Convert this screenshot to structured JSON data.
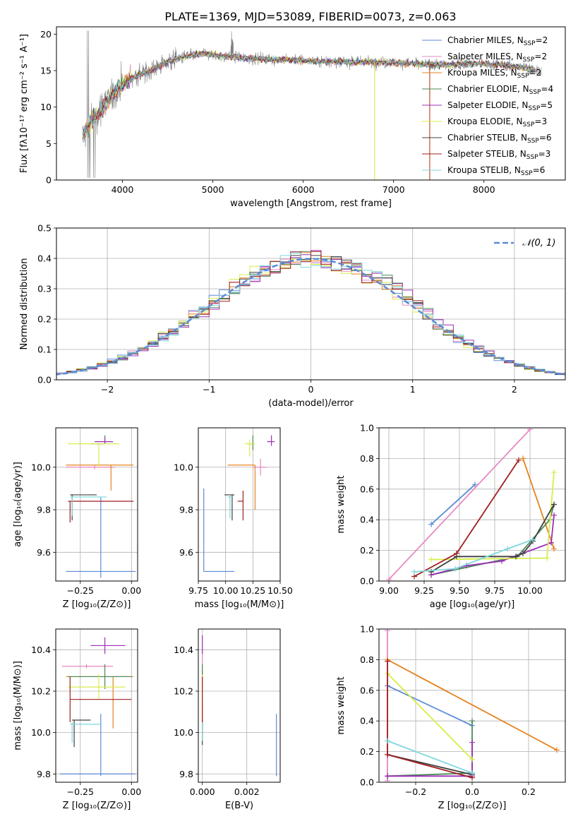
{
  "figure_title": "PLATE=1369, MJD=53089, FIBERID=0073, z=0.063",
  "colors": {
    "chabrier_miles": "#5b8bd8",
    "salpeter_miles": "#e78ac3",
    "kroupa_miles": "#e6821e",
    "chabrier_elodie": "#4a8a55",
    "salpeter_elodie": "#9c30b8",
    "kroupa_elodie": "#d8ec4a",
    "chabrier_stelib": "#404040",
    "salpeter_stelib": "#a01f1f",
    "kroupa_stelib": "#7fd8dc",
    "data": "#808080",
    "gaussian": "#5b8bd8",
    "grid": "#b0b0b0"
  },
  "chart_data": [
    {
      "id": "spectrum",
      "type": "line",
      "xlabel": "wavelength [Angstrom, rest frame]",
      "ylabel": "Flux [fλ10⁻¹⁷ erg cm⁻² s⁻¹ A⁻¹]",
      "xlim": [
        3270,
        8900
      ],
      "ylim": [
        0,
        21
      ],
      "xticks": [
        4000,
        5000,
        6000,
        7000,
        8000
      ],
      "yticks": [
        0,
        5,
        10,
        15,
        20
      ],
      "grid": false,
      "legend_position": "top-right",
      "continuum": [
        [
          3560,
          6
        ],
        [
          3650,
          8
        ],
        [
          3750,
          9.5
        ],
        [
          3850,
          11
        ],
        [
          3950,
          12.5
        ],
        [
          4100,
          14
        ],
        [
          4300,
          15
        ],
        [
          4500,
          16.2
        ],
        [
          4700,
          17
        ],
        [
          4900,
          17.3
        ],
        [
          5100,
          17
        ],
        [
          5300,
          16.8
        ],
        [
          5500,
          16.6
        ],
        [
          5800,
          16.5
        ],
        [
          6100,
          16.3
        ],
        [
          6400,
          16.2
        ],
        [
          6700,
          16.2
        ],
        [
          7000,
          16.1
        ],
        [
          7300,
          15.9
        ],
        [
          7600,
          15.8
        ],
        [
          7900,
          16
        ],
        [
          8200,
          15.8
        ],
        [
          8500,
          15.3
        ],
        [
          8640,
          15
        ]
      ],
      "series": [
        {
          "name": "Chabrier MILES, N",
          "sub": "SSP",
          "suffix": "=2",
          "color_key": "chabrier_miles"
        },
        {
          "name": "Salpeter MILES, N",
          "sub": "SSP",
          "suffix": "=2",
          "color_key": "salpeter_miles"
        },
        {
          "name": "Kroupa MILES, N",
          "sub": "SSP",
          "suffix": "=2",
          "color_key": "kroupa_miles"
        },
        {
          "name": "Chabrier ELODIE, N",
          "sub": "SSP",
          "suffix": "=4",
          "color_key": "chabrier_elodie"
        },
        {
          "name": "Salpeter ELODIE, N",
          "sub": "SSP",
          "suffix": "=5",
          "color_key": "salpeter_elodie"
        },
        {
          "name": "Kroupa ELODIE, N",
          "sub": "SSP",
          "suffix": "=3",
          "color_key": "kroupa_elodie"
        },
        {
          "name": "Chabrier STELIB, N",
          "sub": "SSP",
          "suffix": "=6",
          "color_key": "chabrier_stelib"
        },
        {
          "name": "Salpeter STELIB, N",
          "sub": "SSP",
          "suffix": "=3",
          "color_key": "salpeter_stelib"
        },
        {
          "name": "Kroupa STELIB, N",
          "sub": "SSP",
          "suffix": "=6",
          "color_key": "kroupa_stelib"
        }
      ]
    },
    {
      "id": "residuals",
      "type": "histogram",
      "xlabel": "(data-model)/error",
      "ylabel": "Normed distribution",
      "xlim": [
        -2.5,
        2.5
      ],
      "ylim": [
        0,
        0.5
      ],
      "xticks": [
        -2,
        -1,
        0,
        1,
        2
      ],
      "yticks": [
        0.0,
        0.1,
        0.2,
        0.3,
        0.4,
        0.5
      ],
      "grid": true,
      "legend_position": "top-right",
      "legend_label": "𝒩(0, 1)",
      "bin_width": 0.1,
      "reference": {
        "type": "gaussian",
        "mean": 0,
        "sigma": 1
      }
    },
    {
      "id": "age_vs_Z",
      "type": "errorbar",
      "xlabel": "Z [log₁₀(Z/Z⊙)]",
      "ylabel": "age  [log₁₀(age/yr)]",
      "xlim": [
        -0.37,
        0.03
      ],
      "ylim": [
        9.465,
        10.185
      ],
      "xticks": [
        -0.25,
        0.0
      ],
      "yticks": [
        9.6,
        9.8,
        10.0
      ],
      "grid": true,
      "points": [
        {
          "c": "chabrier_miles",
          "x": -0.15,
          "xlo": -0.32,
          "xhi": 0.02,
          "y": 9.51,
          "ylo": 9.48,
          "yhi": 9.86
        },
        {
          "c": "salpeter_miles",
          "x": -0.18,
          "xlo": -0.32,
          "xhi": -0.08,
          "y": 10.0,
          "ylo": 9.99,
          "yhi": 10.01
        },
        {
          "c": "kroupa_miles",
          "x": -0.1,
          "xlo": -0.32,
          "xhi": 0.01,
          "y": 10.01,
          "ylo": 9.89,
          "yhi": 10.01
        },
        {
          "c": "chabrier_elodie",
          "x": -0.13,
          "xlo": -0.2,
          "xhi": -0.13,
          "y": 10.11,
          "ylo": 10.11,
          "yhi": 10.15
        },
        {
          "c": "salpeter_elodie",
          "x": -0.13,
          "xlo": -0.18,
          "xhi": -0.09,
          "y": 10.12,
          "ylo": 10.11,
          "yhi": 10.14
        },
        {
          "c": "kroupa_elodie",
          "x": -0.16,
          "xlo": -0.31,
          "xhi": -0.06,
          "y": 10.11,
          "ylo": 10.0,
          "yhi": 10.11
        },
        {
          "c": "chabrier_stelib",
          "x": -0.29,
          "xlo": -0.3,
          "xhi": -0.17,
          "y": 9.87,
          "ylo": 9.75,
          "yhi": 9.87
        },
        {
          "c": "salpeter_stelib",
          "x": -0.3,
          "xlo": -0.31,
          "xhi": 0.01,
          "y": 9.84,
          "ylo": 9.74,
          "yhi": 9.84
        },
        {
          "c": "kroupa_stelib",
          "x": -0.29,
          "xlo": -0.3,
          "xhi": -0.12,
          "y": 9.86,
          "ylo": 9.77,
          "yhi": 9.86
        }
      ]
    },
    {
      "id": "age_vs_mass",
      "type": "errorbar",
      "xlabel": "mass [log₁₀(M/M⊙)]",
      "ylabel": "",
      "xlim": [
        9.75,
        10.5
      ],
      "ylim": [
        9.465,
        10.185
      ],
      "xticks": [
        9.75,
        10.0,
        10.25,
        10.5
      ],
      "yticks": [
        9.6,
        9.8,
        10.0
      ],
      "grid": true,
      "points": [
        {
          "c": "chabrier_miles",
          "x": 9.8,
          "xlo": 9.8,
          "xhi": 10.08,
          "y": 9.51,
          "ylo": 9.51,
          "yhi": 9.9
        },
        {
          "c": "salpeter_miles",
          "x": 10.32,
          "xlo": 10.25,
          "xhi": 10.38,
          "y": 10.0,
          "ylo": 9.96,
          "yhi": 10.04
        },
        {
          "c": "kroupa_miles",
          "x": 10.27,
          "xlo": 10.02,
          "xhi": 10.27,
          "y": 10.01,
          "ylo": 9.8,
          "yhi": 10.01
        },
        {
          "c": "chabrier_elodie",
          "x": 10.25,
          "xlo": 10.22,
          "xhi": 10.26,
          "y": 10.11,
          "ylo": 10.08,
          "yhi": 10.15
        },
        {
          "c": "salpeter_elodie",
          "x": 10.42,
          "xlo": 10.38,
          "xhi": 10.45,
          "y": 10.12,
          "ylo": 10.1,
          "yhi": 10.15
        },
        {
          "c": "kroupa_elodie",
          "x": 10.22,
          "xlo": 10.18,
          "xhi": 10.27,
          "y": 10.11,
          "ylo": 10.05,
          "yhi": 10.13
        },
        {
          "c": "chabrier_stelib",
          "x": 10.06,
          "xlo": 9.99,
          "xhi": 10.08,
          "y": 9.87,
          "ylo": 9.75,
          "yhi": 9.87
        },
        {
          "c": "salpeter_stelib",
          "x": 10.16,
          "xlo": 10.11,
          "xhi": 10.16,
          "y": 9.84,
          "ylo": 9.75,
          "yhi": 9.89
        },
        {
          "c": "kroupa_stelib",
          "x": 10.04,
          "xlo": 10.02,
          "xhi": 10.06,
          "y": 9.86,
          "ylo": 9.76,
          "yhi": 9.87
        }
      ]
    },
    {
      "id": "weight_vs_age",
      "type": "line",
      "xlabel": "age  [log₁₀(age/yr)]",
      "ylabel": "mass weight",
      "xlim": [
        8.93,
        10.25
      ],
      "ylim": [
        0,
        1
      ],
      "xticks": [
        9.0,
        9.25,
        9.5,
        9.75,
        10.0
      ],
      "yticks": [
        0.0,
        0.2,
        0.4,
        0.6,
        0.8,
        1.0
      ],
      "grid": true,
      "series": [
        {
          "c": "chabrier_miles",
          "points": [
            [
              9.3,
              0.37
            ],
            [
              9.61,
              0.63
            ]
          ]
        },
        {
          "c": "salpeter_miles",
          "points": [
            [
              9.0,
              0.01
            ],
            [
              10.0,
              0.99
            ]
          ]
        },
        {
          "c": "kroupa_miles",
          "points": [
            [
              9.95,
              0.8
            ],
            [
              10.17,
              0.21
            ]
          ]
        },
        {
          "c": "chabrier_elodie",
          "points": [
            [
              9.3,
              0.04
            ],
            [
              9.91,
              0.16
            ],
            [
              10.14,
              0.4
            ],
            [
              10.17,
              0.5
            ]
          ]
        },
        {
          "c": "salpeter_elodie",
          "points": [
            [
              9.3,
              0.04
            ],
            [
              9.55,
              0.1
            ],
            [
              9.8,
              0.13
            ],
            [
              10.15,
              0.25
            ],
            [
              10.17,
              0.43
            ]
          ]
        },
        {
          "c": "kroupa_elodie",
          "points": [
            [
              9.3,
              0.14
            ],
            [
              10.12,
              0.15
            ],
            [
              10.17,
              0.71
            ]
          ]
        },
        {
          "c": "chabrier_stelib",
          "points": [
            [
              9.3,
              0.06
            ],
            [
              9.48,
              0.16
            ],
            [
              9.9,
              0.16
            ],
            [
              9.95,
              0.18
            ],
            [
              10.02,
              0.26
            ],
            [
              10.17,
              0.5
            ]
          ]
        },
        {
          "c": "salpeter_stelib",
          "points": [
            [
              9.18,
              0.03
            ],
            [
              9.48,
              0.18
            ],
            [
              9.92,
              0.79
            ]
          ]
        },
        {
          "c": "kroupa_stelib",
          "points": [
            [
              9.18,
              0.06
            ],
            [
              9.47,
              0.08
            ],
            [
              9.84,
              0.21
            ],
            [
              10.02,
              0.27
            ]
          ]
        }
      ]
    },
    {
      "id": "mass_vs_Z",
      "type": "errorbar",
      "xlabel": "Z [log₁₀(Z/Z⊙)]",
      "ylabel": "mass [log₁₀(M/M⊙)]",
      "xlim": [
        -0.37,
        0.03
      ],
      "ylim": [
        9.76,
        10.5
      ],
      "xticks": [
        -0.25,
        0.0
      ],
      "yticks": [
        9.8,
        10.0,
        10.2,
        10.4
      ],
      "grid": true,
      "points": [
        {
          "c": "chabrier_miles",
          "x": -0.15,
          "xlo": -0.35,
          "xhi": 0.02,
          "y": 9.8,
          "ylo": 9.79,
          "yhi": 10.09
        },
        {
          "c": "salpeter_miles",
          "x": -0.22,
          "xlo": -0.34,
          "xhi": -0.09,
          "y": 10.32,
          "ylo": 10.31,
          "yhi": 10.33
        },
        {
          "c": "kroupa_miles",
          "x": -0.09,
          "xlo": -0.32,
          "xhi": 0.01,
          "y": 10.27,
          "ylo": 10.02,
          "yhi": 10.27
        },
        {
          "c": "chabrier_elodie",
          "x": -0.13,
          "xlo": -0.31,
          "xhi": 0.0,
          "y": 10.27,
          "ylo": 10.21,
          "yhi": 10.33
        },
        {
          "c": "salpeter_elodie",
          "x": -0.13,
          "xlo": -0.2,
          "xhi": -0.03,
          "y": 10.42,
          "ylo": 10.38,
          "yhi": 10.46
        },
        {
          "c": "kroupa_elodie",
          "x": -0.16,
          "xlo": -0.31,
          "xhi": -0.03,
          "y": 10.22,
          "ylo": 10.16,
          "yhi": 10.28
        },
        {
          "c": "chabrier_stelib",
          "x": -0.28,
          "xlo": -0.29,
          "xhi": -0.2,
          "y": 10.06,
          "ylo": 9.93,
          "yhi": 10.06
        },
        {
          "c": "salpeter_stelib",
          "x": -0.3,
          "xlo": -0.3,
          "xhi": 0.0,
          "y": 10.16,
          "ylo": 10.05,
          "yhi": 10.27
        },
        {
          "c": "kroupa_stelib",
          "x": -0.29,
          "xlo": -0.3,
          "xhi": -0.15,
          "y": 10.04,
          "ylo": 9.95,
          "yhi": 10.05
        }
      ]
    },
    {
      "id": "mass_vs_ebv",
      "type": "errorbar",
      "xlabel": "E(B-V)",
      "ylabel": "",
      "xlim": [
        -0.00018,
        0.0035
      ],
      "ylim": [
        9.76,
        10.5
      ],
      "xticks": [
        0.0,
        0.002
      ],
      "yticks": [
        9.8,
        10.0,
        10.2,
        10.4
      ],
      "grid": true,
      "points": [
        {
          "c": "chabrier_miles",
          "x": 0.00333,
          "y": 9.8,
          "ylo": 9.79,
          "yhi": 10.09
        },
        {
          "c": "salpeter_miles",
          "x": 0.0,
          "y": 10.32,
          "ylo": 10.23,
          "yhi": 10.41
        },
        {
          "c": "kroupa_miles",
          "x": 0.0,
          "y": 10.27,
          "ylo": 10.0,
          "yhi": 10.3
        },
        {
          "c": "chabrier_elodie",
          "x": 0.0,
          "y": 10.27,
          "ylo": 10.22,
          "yhi": 10.33
        },
        {
          "c": "salpeter_elodie",
          "x": 0.0,
          "y": 10.42,
          "ylo": 10.38,
          "yhi": 10.47
        },
        {
          "c": "kroupa_elodie",
          "x": 0.0,
          "y": 10.22,
          "ylo": 10.16,
          "yhi": 10.28
        },
        {
          "c": "chabrier_stelib",
          "x": 0.0,
          "y": 10.06,
          "ylo": 9.94,
          "yhi": 10.06
        },
        {
          "c": "salpeter_stelib",
          "x": 0.0,
          "y": 10.16,
          "ylo": 10.05,
          "yhi": 10.27
        },
        {
          "c": "kroupa_stelib",
          "x": 0.0,
          "y": 10.04,
          "ylo": 9.96,
          "yhi": 10.05
        }
      ]
    },
    {
      "id": "weight_vs_Z",
      "type": "line",
      "xlabel": "Z [log₁₀(Z/Z⊙)]",
      "ylabel": "mass weight",
      "xlim": [
        -0.33,
        0.33
      ],
      "ylim": [
        0,
        1
      ],
      "xticks": [
        -0.2,
        0.0,
        0.2
      ],
      "yticks": [
        0.0,
        0.2,
        0.4,
        0.6,
        0.8,
        1.0
      ],
      "grid": true,
      "series": [
        {
          "c": "chabrier_miles",
          "points": [
            [
              -0.3,
              0.63
            ],
            [
              0.0,
              0.37
            ]
          ]
        },
        {
          "c": "salpeter_miles",
          "points": [
            [
              -0.3,
              0.99
            ],
            [
              -0.3,
              0.01
            ]
          ]
        },
        {
          "c": "kroupa_miles",
          "points": [
            [
              -0.3,
              0.8
            ],
            [
              0.3,
              0.21
            ]
          ]
        },
        {
          "c": "chabrier_elodie",
          "points": [
            [
              -0.3,
              0.04
            ],
            [
              0.0,
              0.06
            ],
            [
              0.0,
              0.4
            ]
          ]
        },
        {
          "c": "salpeter_elodie",
          "points": [
            [
              -0.3,
              0.04
            ],
            [
              0.0,
              0.04
            ],
            [
              0.0,
              0.26
            ]
          ]
        },
        {
          "c": "kroupa_elodie",
          "points": [
            [
              -0.3,
              0.71
            ],
            [
              0.0,
              0.15
            ]
          ]
        },
        {
          "c": "chabrier_stelib",
          "points": [
            [
              -0.3,
              0.18
            ],
            [
              0.0,
              0.05
            ]
          ]
        },
        {
          "c": "salpeter_stelib",
          "points": [
            [
              -0.3,
              0.79
            ],
            [
              -0.3,
              0.18
            ],
            [
              0.0,
              0.03
            ]
          ]
        },
        {
          "c": "kroupa_stelib",
          "points": [
            [
              -0.3,
              0.27
            ],
            [
              0.0,
              0.06
            ]
          ]
        }
      ]
    }
  ]
}
